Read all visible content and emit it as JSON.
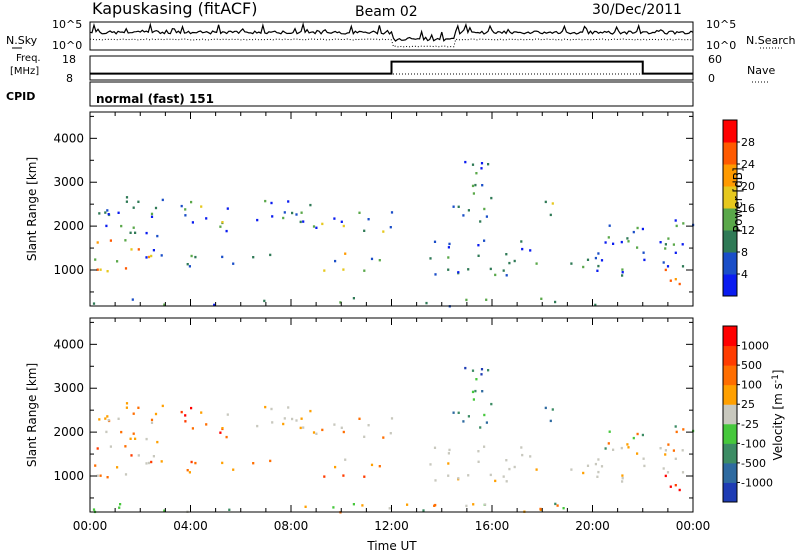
{
  "header": {
    "station": "Kapuskasing (fitACF)",
    "beam": "Beam 02",
    "date": "30/Dec/2011"
  },
  "noise_panel": {
    "left_label": "N.Sky",
    "right_label": "N.Search",
    "left_ticks": [
      "10^5",
      "10^0"
    ],
    "right_ticks": [
      "10^5",
      "10^0"
    ]
  },
  "freq_panel": {
    "left_label_line1": "Freq.",
    "left_label_line2": "[MHz]",
    "right_label": "Nave",
    "left_ticks": [
      "18",
      "8"
    ],
    "right_ticks": [
      "60",
      "0"
    ],
    "freq_mhz": 10.5,
    "nave_steps": [
      {
        "start_h": 0,
        "end_h": 12,
        "nave": 16
      },
      {
        "start_h": 12,
        "end_h": 22,
        "nave": 46
      },
      {
        "start_h": 22,
        "end_h": 24,
        "nave": 16
      }
    ]
  },
  "cpid": {
    "label": "CPID",
    "value": "normal (fast) 151"
  },
  "chart_data": [
    {
      "type": "heatmap",
      "name": "power",
      "ylabel": "Slant Range [km]",
      "yticks": [
        1000,
        2000,
        3000,
        4000
      ],
      "ylim": [
        180,
        4600
      ],
      "xlim": [
        0,
        24
      ],
      "colorbar_label": "Power [dB]",
      "colorbar_ticks": [
        "28",
        "24",
        "20",
        "16",
        "12",
        "8",
        "4"
      ],
      "colors": [
        "#0a1cf0",
        "#1a4ec8",
        "#2f7a56",
        "#5aa84a",
        "#e6c81e",
        "#ff9a00",
        "#ff5a00",
        "#ff0000"
      ]
    },
    {
      "type": "heatmap",
      "name": "velocity",
      "ylabel": "Slant Range [km]",
      "yticks": [
        1000,
        2000,
        3000,
        4000
      ],
      "ylim": [
        180,
        4600
      ],
      "xlim": [
        0,
        24
      ],
      "xlabel": "Time UT",
      "xticks": [
        "00:00",
        "04:00",
        "08:00",
        "12:00",
        "16:00",
        "20:00",
        "00:00"
      ],
      "colorbar_label": "Velocity [m s",
      "colorbar_label_sup": "-1",
      "colorbar_label_end": "]",
      "colorbar_ticks": [
        "1000",
        "500",
        "100",
        "25",
        "-25",
        "-100",
        "-500",
        "-1000"
      ],
      "colors": [
        "#1e3cb4",
        "#2e6aa0",
        "#3c8c64",
        "#46c83c",
        "#c8c8be",
        "#ffa000",
        "#ff6e00",
        "#ff3c00",
        "#ff0000"
      ]
    }
  ]
}
